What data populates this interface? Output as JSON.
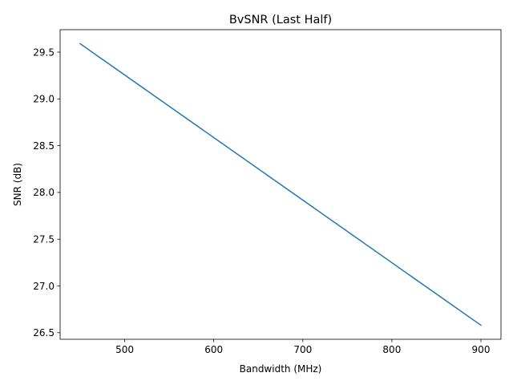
{
  "chart_data": {
    "type": "line",
    "title": "BvSNR (Last Half)",
    "xlabel": "Bandwidth (MHz)",
    "ylabel": "SNR (dB)",
    "xlim": [
      427.5,
      922.5
    ],
    "ylim": [
      26.43,
      29.74
    ],
    "xticks": [
      500,
      600,
      700,
      800,
      900
    ],
    "xtick_labels": [
      "500",
      "600",
      "700",
      "800",
      "900"
    ],
    "yticks": [
      26.5,
      27.0,
      27.5,
      28.0,
      28.5,
      29.0,
      29.5
    ],
    "ytick_labels": [
      "26.5",
      "27.0",
      "27.5",
      "28.0",
      "28.5",
      "29.0",
      "29.5"
    ],
    "grid": false,
    "series": [
      {
        "name": "SNR",
        "color": "#1f77b4",
        "x": [
          450,
          900
        ],
        "y": [
          29.59,
          26.58
        ]
      }
    ]
  }
}
